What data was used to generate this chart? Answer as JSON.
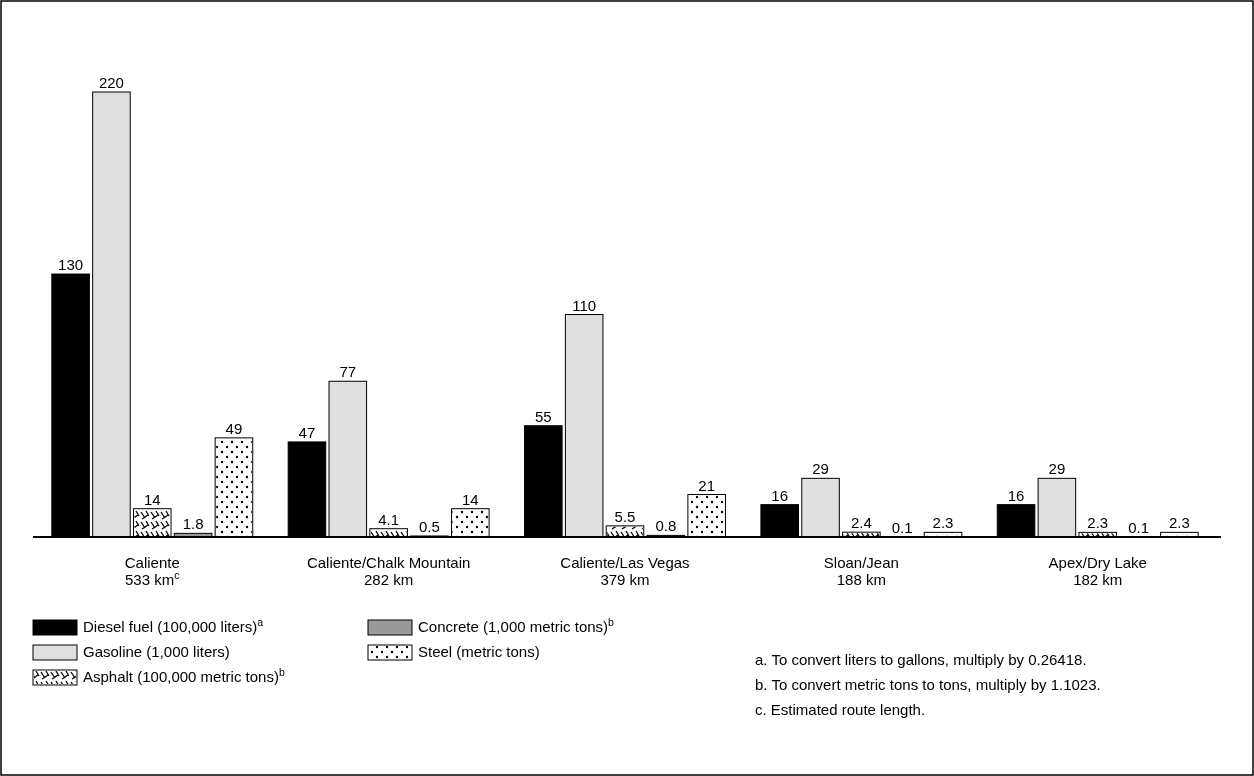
{
  "chart_data": {
    "type": "bar",
    "categories": [
      "Caliente\n533 km$^{c}$",
      "Caliente/Chalk Mountain\n282 km",
      "Caliente/Las Vegas\n379 km",
      "Sloan/Jean\n188 km",
      "Apex/Dry Lake\n182 km"
    ],
    "series": [
      {
        "name": "Diesel fuel (100,000 liters)$^{a}$",
        "color": "#000000",
        "values": [
          130,
          47,
          55,
          16,
          16
        ]
      },
      {
        "name": "Gasoline (1,000 liters)",
        "color": "#e0e0e0",
        "values": [
          220,
          77,
          110,
          29,
          29
        ]
      },
      {
        "name": "Asphalt (100,000 metric tons)$^{b}$",
        "color": "#ffffff",
        "values": [
          14,
          4.1,
          5.5,
          2.4,
          2.3
        ]
      },
      {
        "name": "Concrete (1,000 metric tons)$^{b}$",
        "color": "#999999",
        "values": [
          1.8,
          0.5,
          0.8,
          0.1,
          0.1
        ]
      },
      {
        "name": "Steel (metric tons)",
        "color": "#ffffff",
        "values": [
          49,
          14,
          21,
          2.3,
          2.3
        ]
      }
    ],
    "data_labels": true,
    "legend": "bottom left",
    "annotations": [
      "a.  To convert liters to gallons, multiply by 0.26418.",
      "b.  To convert metric tons to tons, multiply by 1.1023.",
      "c.  Estimated route length."
    ]
  }
}
